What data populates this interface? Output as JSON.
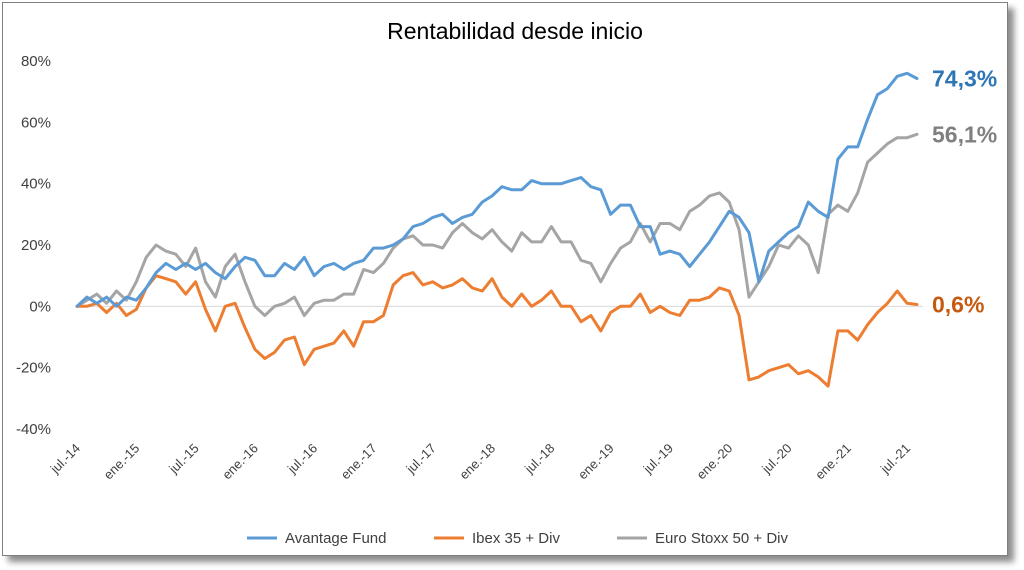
{
  "chart_data": {
    "type": "line",
    "title": "Rentabilidad desde inicio",
    "xlabel": "",
    "ylabel": "",
    "ylim": [
      -40,
      80
    ],
    "yticks": [
      "80%",
      "60%",
      "40%",
      "20%",
      "0%",
      "-20%",
      "-40%"
    ],
    "ytick_values": [
      80,
      60,
      40,
      20,
      0,
      -20,
      -40
    ],
    "x_tick_labels": [
      "jul.-14",
      "ene.-15",
      "jul.-15",
      "ene.-16",
      "jul.-16",
      "ene.-17",
      "jul.-17",
      "ene.-18",
      "jul.-18",
      "ene.-19",
      "jul.-19",
      "ene.-20",
      "jul.-20",
      "ene.-21",
      "jul.-21"
    ],
    "x_start": "jul.-14",
    "x_end": "ago.-21",
    "grid": false,
    "legend_position": "bottom",
    "series": [
      {
        "name": "Avantage Fund",
        "color": "#5b9bd5",
        "end_label": "74,3%",
        "values": [
          0,
          3,
          1,
          3,
          0,
          3,
          2,
          6,
          11,
          14,
          12,
          14,
          12,
          14,
          11,
          9,
          13,
          16,
          15,
          10,
          10,
          14,
          12,
          16,
          10,
          13,
          14,
          12,
          14,
          15,
          19,
          19,
          20,
          22,
          26,
          27,
          29,
          30,
          27,
          29,
          30,
          34,
          36,
          39,
          38,
          38,
          41,
          40,
          40,
          40,
          41,
          42,
          39,
          38,
          30,
          33,
          33,
          26,
          26,
          17,
          18,
          17,
          13,
          17,
          21,
          26,
          31,
          29,
          24,
          8,
          18,
          21,
          24,
          26,
          34,
          31,
          29,
          48,
          52,
          52,
          61,
          69,
          71,
          75,
          76,
          74.3
        ]
      },
      {
        "name": "Ibex 35 + Div",
        "color": "#ed7d31",
        "end_label": "0,6%",
        "values": [
          0,
          0,
          1,
          -2,
          1,
          -3,
          -1,
          6,
          10,
          9,
          8,
          4,
          8,
          -1,
          -8,
          0,
          1,
          -7,
          -14,
          -17,
          -15,
          -11,
          -10,
          -19,
          -14,
          -13,
          -12,
          -8,
          -13,
          -5,
          -5,
          -3,
          7,
          10,
          11,
          7,
          8,
          6,
          7,
          9,
          6,
          5,
          9,
          3,
          0,
          4,
          0,
          2,
          5,
          0,
          0,
          -5,
          -3,
          -8,
          -2,
          0,
          0,
          4,
          -2,
          0,
          -2,
          -3,
          2,
          2,
          3,
          6,
          5,
          -3,
          -24,
          -23,
          -21,
          -20,
          -19,
          -22,
          -21,
          -23,
          -26,
          -8,
          -8,
          -11,
          -6,
          -2,
          1,
          5,
          1,
          0.6
        ]
      },
      {
        "name": "Euro Stoxx 50 + Div",
        "color": "#a5a5a5",
        "end_label": "56,1%",
        "values": [
          0,
          2,
          4,
          1,
          5,
          2,
          8,
          16,
          20,
          18,
          17,
          13,
          19,
          8,
          3,
          13,
          17,
          8,
          0,
          -3,
          0,
          1,
          3,
          -3,
          1,
          2,
          2,
          4,
          4,
          12,
          11,
          14,
          19,
          22,
          23,
          20,
          20,
          19,
          24,
          27,
          24,
          22,
          25,
          21,
          18,
          24,
          21,
          21,
          26,
          21,
          21,
          15,
          14,
          8,
          14,
          19,
          21,
          27,
          21,
          27,
          27,
          25,
          31,
          33,
          36,
          37,
          34,
          25,
          3,
          8,
          13,
          20,
          19,
          23,
          20,
          11,
          30,
          33,
          31,
          37,
          47,
          50,
          53,
          55,
          55,
          56.1
        ]
      }
    ]
  }
}
